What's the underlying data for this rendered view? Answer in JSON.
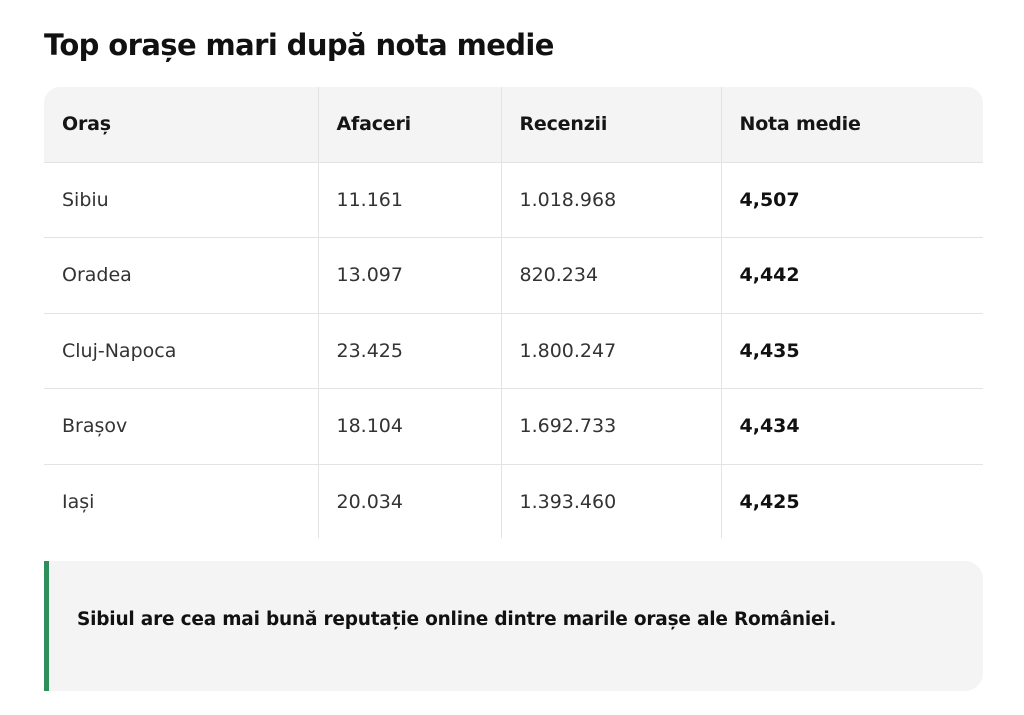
{
  "title": "Top orașe mari după nota medie",
  "table": {
    "headers": [
      "Oraș",
      "Afaceri",
      "Recenzii",
      "Nota medie"
    ],
    "rows": [
      [
        "Sibiu",
        "11.161",
        "1.018.968",
        "4,507"
      ],
      [
        "Oradea",
        "13.097",
        "820.234",
        "4,442"
      ],
      [
        "Cluj-Napoca",
        "23.425",
        "1.800.247",
        "4,435"
      ],
      [
        "Brașov",
        "18.104",
        "1.692.733",
        "4,434"
      ],
      [
        "Iași",
        "20.034",
        "1.393.460",
        "4,425"
      ]
    ]
  },
  "callout": {
    "text": "Sibiul are cea mai bună reputație online dintre marile orașe ale României.",
    "accent_color": "#2f8f5b"
  }
}
